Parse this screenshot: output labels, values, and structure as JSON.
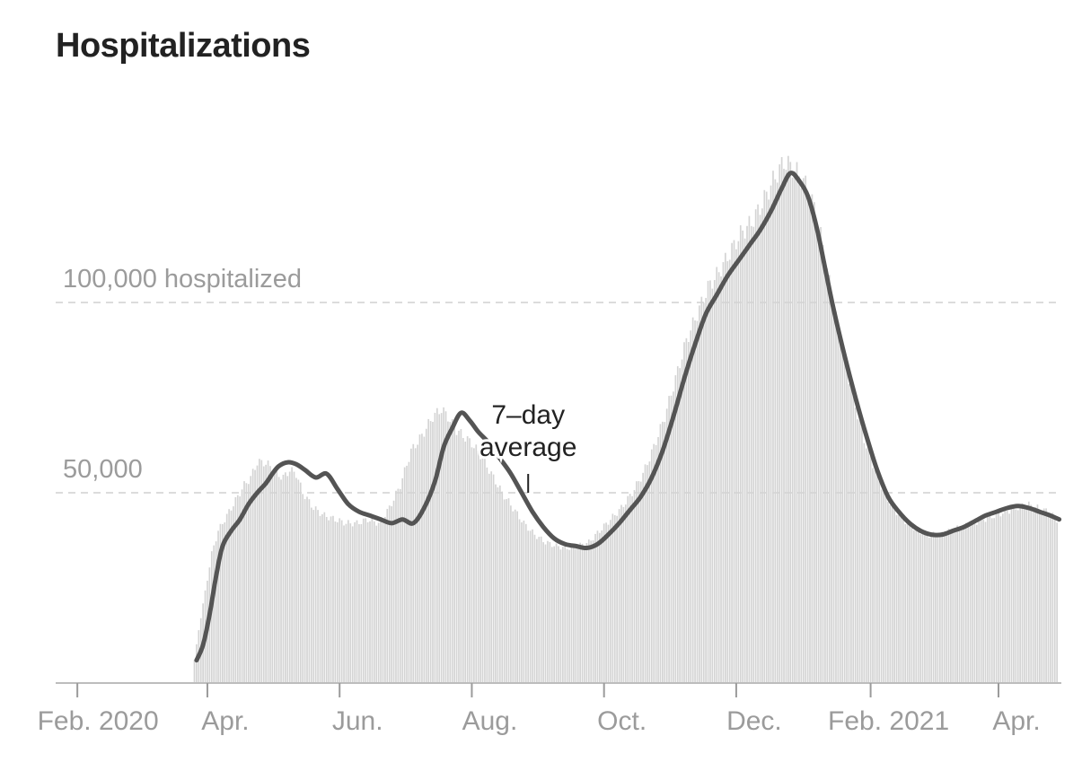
{
  "chart_data": {
    "type": "bar",
    "title": "Hospitalizations",
    "subtitle": "",
    "xlabel": "",
    "ylabel": "",
    "ylim": [
      0,
      150000
    ],
    "grid": "horizontal dashed",
    "gridlines": [
      {
        "value": 50000,
        "label": "50,000"
      },
      {
        "value": 100000,
        "label": "100,000 hospitalized"
      }
    ],
    "x_ticks": [
      {
        "date": "2020-02-01",
        "label": "Feb. 2020"
      },
      {
        "date": "2020-04-01",
        "label": "Apr."
      },
      {
        "date": "2020-06-01",
        "label": "Jun."
      },
      {
        "date": "2020-08-01",
        "label": "Aug."
      },
      {
        "date": "2020-10-01",
        "label": "Oct."
      },
      {
        "date": "2020-12-01",
        "label": "Dec."
      },
      {
        "date": "2021-02-01",
        "label": "Feb. 2021"
      },
      {
        "date": "2021-04-01",
        "label": "Apr."
      }
    ],
    "x_range": [
      "2020-01-22",
      "2021-04-30"
    ],
    "annotation": {
      "lines": [
        "7–day",
        "average"
      ],
      "date": "2020-08-27",
      "value": 50000
    },
    "series": [
      {
        "name": "",
        "kind": "daily bars",
        "color": "#d4d4d4",
        "x": [
          "2020-03-26",
          "2020-03-28",
          "2020-03-31",
          "2020-04-03",
          "2020-04-06",
          "2020-04-09",
          "2020-04-12",
          "2020-04-15",
          "2020-04-18",
          "2020-04-21",
          "2020-04-24",
          "2020-04-27",
          "2020-04-30",
          "2020-05-03",
          "2020-05-06",
          "2020-05-09",
          "2020-05-12",
          "2020-05-15",
          "2020-05-20",
          "2020-05-25",
          "2020-05-30",
          "2020-06-04",
          "2020-06-09",
          "2020-06-14",
          "2020-06-19",
          "2020-06-24",
          "2020-06-29",
          "2020-07-04",
          "2020-07-09",
          "2020-07-14",
          "2020-07-18",
          "2020-07-21",
          "2020-07-24",
          "2020-07-28",
          "2020-08-01",
          "2020-08-05",
          "2020-08-10",
          "2020-08-15",
          "2020-08-20",
          "2020-08-25",
          "2020-08-30",
          "2020-09-04",
          "2020-09-09",
          "2020-09-14",
          "2020-09-19",
          "2020-09-24",
          "2020-09-29",
          "2020-10-04",
          "2020-10-09",
          "2020-10-14",
          "2020-10-19",
          "2020-10-24",
          "2020-10-29",
          "2020-11-03",
          "2020-11-08",
          "2020-11-13",
          "2020-11-18",
          "2020-11-23",
          "2020-11-28",
          "2020-12-03",
          "2020-12-08",
          "2020-12-13",
          "2020-12-18",
          "2020-12-23",
          "2020-12-28",
          "2021-01-02",
          "2021-01-06",
          "2021-01-10",
          "2021-01-14",
          "2021-01-19",
          "2021-01-24",
          "2021-01-29",
          "2021-02-03",
          "2021-02-08",
          "2021-02-13",
          "2021-02-18",
          "2021-02-23",
          "2021-02-28",
          "2021-03-05",
          "2021-03-10",
          "2021-03-15",
          "2021-03-20",
          "2021-03-25",
          "2021-03-30",
          "2021-04-04",
          "2021-04-09",
          "2021-04-14",
          "2021-04-19",
          "2021-04-24",
          "2021-04-28"
        ],
        "values": [
          6000,
          14000,
          24000,
          34000,
          40000,
          43000,
          46000,
          49000,
          52000,
          54000,
          58000,
          58000,
          57000,
          55000,
          54000,
          56000,
          55000,
          50000,
          46000,
          44000,
          43000,
          42000,
          42000,
          43000,
          42000,
          46000,
          52000,
          61000,
          65000,
          70000,
          72000,
          70000,
          67000,
          65000,
          63000,
          60000,
          55000,
          50000,
          46000,
          42000,
          39000,
          37000,
          36000,
          35500,
          36000,
          37000,
          40000,
          43000,
          46000,
          50000,
          55000,
          62000,
          70000,
          80000,
          90000,
          97000,
          104000,
          108000,
          113000,
          118000,
          121000,
          126000,
          132000,
          137000,
          135000,
          131000,
          125000,
          115000,
          102000,
          88000,
          75000,
          64000,
          56000,
          49000,
          45000,
          42000,
          40000,
          39000,
          39000,
          40000,
          41000,
          42000,
          43000,
          44000,
          45000,
          46000,
          47000,
          46000,
          45000,
          43000
        ]
      },
      {
        "name": "7–day average",
        "kind": "line",
        "color": "#545454",
        "x": [
          "2020-03-27",
          "2020-03-30",
          "2020-04-02",
          "2020-04-05",
          "2020-04-08",
          "2020-04-12",
          "2020-04-16",
          "2020-04-20",
          "2020-04-24",
          "2020-04-28",
          "2020-05-01",
          "2020-05-04",
          "2020-05-08",
          "2020-05-12",
          "2020-05-16",
          "2020-05-21",
          "2020-05-26",
          "2020-05-31",
          "2020-06-05",
          "2020-06-10",
          "2020-06-15",
          "2020-06-20",
          "2020-06-25",
          "2020-06-30",
          "2020-07-05",
          "2020-07-10",
          "2020-07-15",
          "2020-07-19",
          "2020-07-23",
          "2020-07-27",
          "2020-07-31",
          "2020-08-04",
          "2020-08-09",
          "2020-08-14",
          "2020-08-19",
          "2020-08-24",
          "2020-08-29",
          "2020-09-03",
          "2020-09-08",
          "2020-09-13",
          "2020-09-18",
          "2020-09-23",
          "2020-09-28",
          "2020-10-03",
          "2020-10-08",
          "2020-10-13",
          "2020-10-18",
          "2020-10-23",
          "2020-10-28",
          "2020-11-02",
          "2020-11-07",
          "2020-11-12",
          "2020-11-17",
          "2020-11-22",
          "2020-11-27",
          "2020-12-02",
          "2020-12-07",
          "2020-12-12",
          "2020-12-17",
          "2020-12-22",
          "2020-12-26",
          "2020-12-30",
          "2021-01-03",
          "2021-01-07",
          "2021-01-11",
          "2021-01-15",
          "2021-01-20",
          "2021-01-25",
          "2021-01-30",
          "2021-02-04",
          "2021-02-09",
          "2021-02-14",
          "2021-02-19",
          "2021-02-24",
          "2021-03-01",
          "2021-03-06",
          "2021-03-11",
          "2021-03-16",
          "2021-03-21",
          "2021-03-26",
          "2021-03-31",
          "2021-04-05",
          "2021-04-10",
          "2021-04-15",
          "2021-04-20",
          "2021-04-25",
          "2021-04-29"
        ],
        "values": [
          6000,
          10000,
          18000,
          28000,
          36000,
          40000,
          43000,
          47000,
          50000,
          52500,
          55000,
          57000,
          58000,
          57500,
          56000,
          54000,
          55000,
          51000,
          47000,
          45000,
          44000,
          43000,
          42000,
          43000,
          42000,
          46000,
          53000,
          62000,
          67000,
          71000,
          69000,
          66000,
          63000,
          59000,
          55000,
          50000,
          45000,
          41000,
          38000,
          36500,
          36000,
          35500,
          36500,
          39000,
          42000,
          45500,
          49000,
          54000,
          61000,
          70000,
          80000,
          89000,
          97000,
          102000,
          107000,
          111000,
          115000,
          119000,
          124000,
          130000,
          134000,
          132000,
          128000,
          120000,
          109000,
          98000,
          86000,
          75000,
          65000,
          56000,
          49000,
          45000,
          42000,
          40000,
          39000,
          39000,
          40000,
          41000,
          42500,
          44000,
          45000,
          46000,
          46500,
          46000,
          45000,
          44000,
          43000
        ]
      }
    ]
  }
}
